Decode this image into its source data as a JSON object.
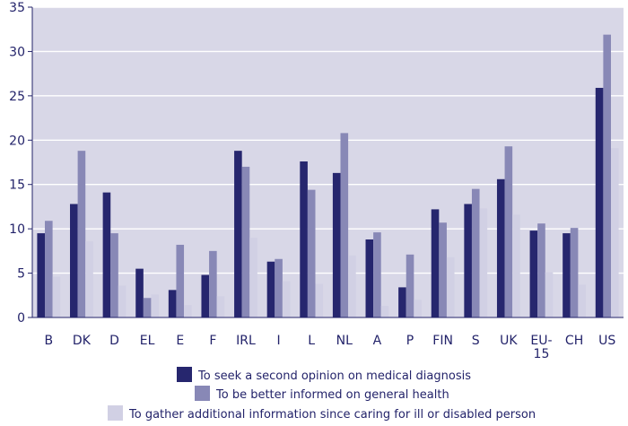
{
  "chart_data": {
    "type": "bar",
    "title": "",
    "xlabel": "",
    "ylabel": "",
    "ylim": [
      0,
      35
    ],
    "yticks": [
      0,
      5,
      10,
      15,
      20,
      25,
      30,
      35
    ],
    "grid": true,
    "legend_position": "bottom",
    "categories": [
      "B",
      "DK",
      "D",
      "EL",
      "E",
      "F",
      "IRL",
      "I",
      "L",
      "NL",
      "A",
      "P",
      "FIN",
      "S",
      "UK",
      "EU-15",
      "CH",
      "US"
    ],
    "category_lines": [
      [
        "B"
      ],
      [
        "DK"
      ],
      [
        "D"
      ],
      [
        "EL"
      ],
      [
        "E"
      ],
      [
        "F"
      ],
      [
        "IRL"
      ],
      [
        "I"
      ],
      [
        "L"
      ],
      [
        "NL"
      ],
      [
        "A"
      ],
      [
        "P"
      ],
      [
        "FIN"
      ],
      [
        "S"
      ],
      [
        "UK"
      ],
      [
        "EU-",
        "15"
      ],
      [
        "CH"
      ],
      [
        "US"
      ]
    ],
    "series": [
      {
        "name": "To seek a second opinion on medical diagnosis",
        "color": "#26266e",
        "values": [
          9.5,
          12.8,
          14.1,
          5.5,
          3.1,
          4.8,
          18.8,
          6.3,
          17.6,
          16.3,
          8.8,
          3.4,
          12.2,
          12.8,
          15.6,
          9.8,
          9.5,
          25.9
        ]
      },
      {
        "name": "To be better informed on general health",
        "color": "#8888b6",
        "values": [
          10.9,
          18.8,
          9.5,
          2.2,
          8.2,
          7.5,
          17.0,
          6.6,
          14.4,
          20.8,
          9.6,
          7.1,
          10.7,
          14.5,
          19.3,
          10.6,
          10.1,
          31.9
        ]
      },
      {
        "name": "To gather additional information since caring for ill or disabled person",
        "color": "#d1d0e4",
        "values": [
          4.6,
          8.6,
          3.6,
          2.6,
          1.4,
          2.4,
          9.0,
          4.1,
          3.8,
          7.0,
          1.3,
          2.0,
          6.8,
          12.3,
          11.6,
          5.1,
          3.7,
          19.1
        ]
      }
    ],
    "plot_background": "#d8d7e7",
    "grid_color": "#ffffff",
    "axis_color": "#23236a"
  }
}
